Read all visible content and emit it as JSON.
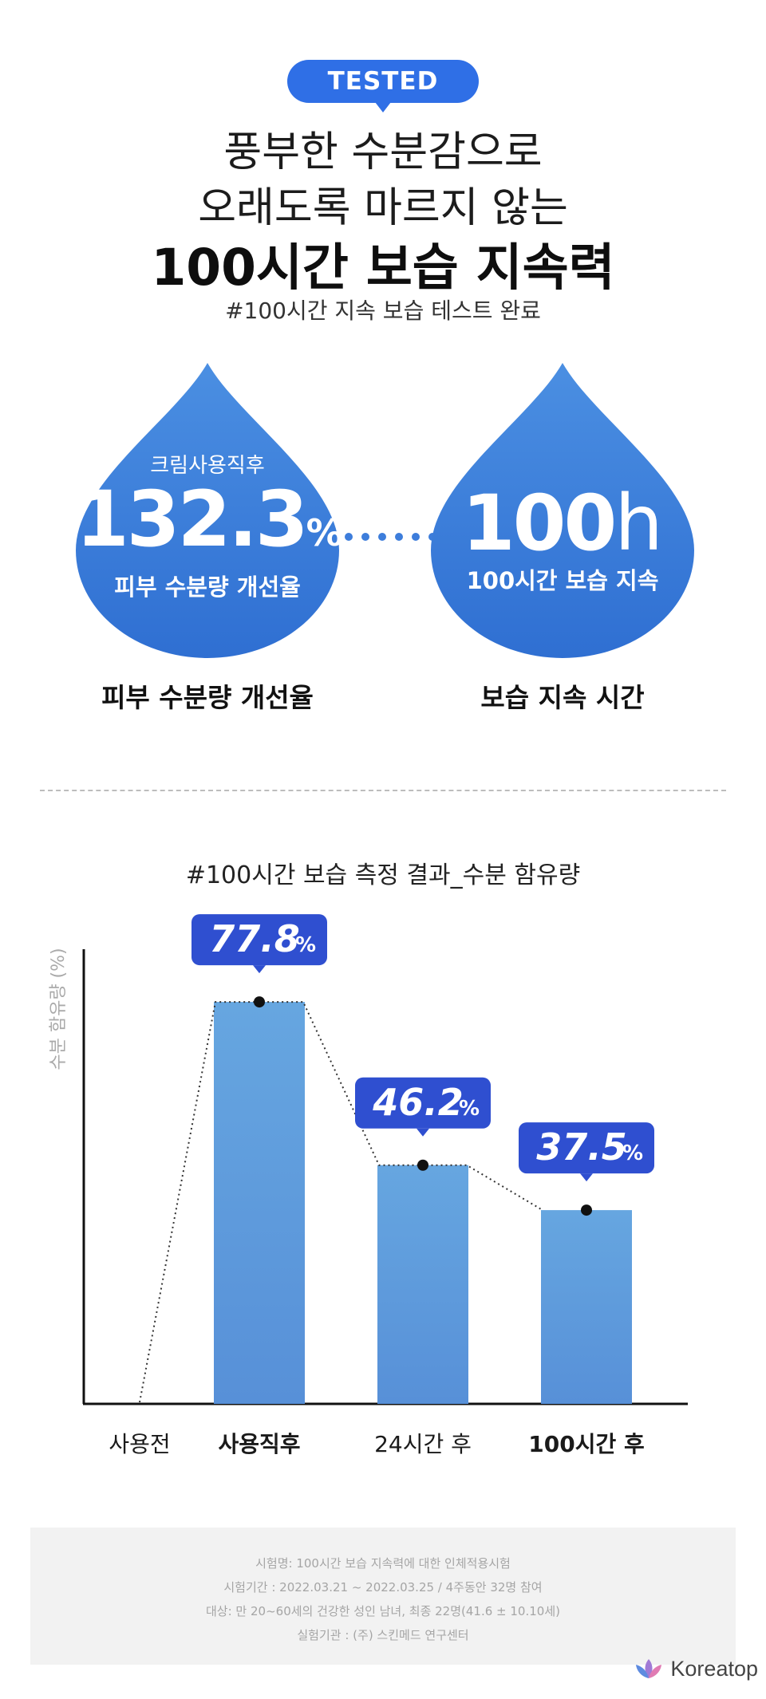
{
  "badge": {
    "label": "TESTED"
  },
  "headline": {
    "line1": "풍부한 수분감으로",
    "line2": "오래도록 마르지 않는",
    "line3": "100시간 보습 지속력"
  },
  "subtitle": "#100시간 지속 보습 테스트 완료",
  "drops": [
    {
      "small": "크림사용직후",
      "value": "132.3",
      "unit": "%",
      "desc": "피부 수분량 개선율",
      "caption": "피부 수분량 개선율"
    },
    {
      "small": "",
      "value": "100",
      "unit": "h",
      "desc": "100시간 보습 지속",
      "caption": "보습 지속 시간"
    }
  ],
  "chart_title": "#100시간 보습 측정 결과_수분 함유량",
  "chart_data": {
    "type": "bar",
    "title": "#100시간 보습 측정 결과_수분 함유량",
    "ylabel": "수분 함유량 (%)",
    "xlabel": "",
    "categories": [
      "사용전",
      "사용직후",
      "24시간 후",
      "100시간 후"
    ],
    "bold_categories": [
      "사용직후",
      "100시간 후"
    ],
    "values": [
      0,
      77.8,
      46.2,
      37.5
    ],
    "value_labels": [
      "",
      "77.8",
      "46.2",
      "37.5"
    ],
    "value_unit": "%",
    "ylim": [
      0,
      88
    ],
    "grid": false,
    "bar_color": "#5f9cdc",
    "label_color": "#2f4fd0"
  },
  "footnote": [
    "시험명: 100시간 보습 지속력에 대한 인체적용시험",
    "시험기간 : 2022.03.21 ~ 2022.03.25 / 4주동안 32명 참여",
    "대상: 만 20~60세의 건강한 성인 남녀, 최종 22명(41.6 ± 10.10세)",
    "실험기관 : (주) 스킨메드 연구센터"
  ],
  "brand": {
    "name": "Koreatop",
    "icon": "lotus-icon"
  },
  "colors": {
    "primary_blue": "#2f6fe6",
    "drop_blue": "#3b7fdc",
    "label_blue": "#2f4fd0"
  }
}
